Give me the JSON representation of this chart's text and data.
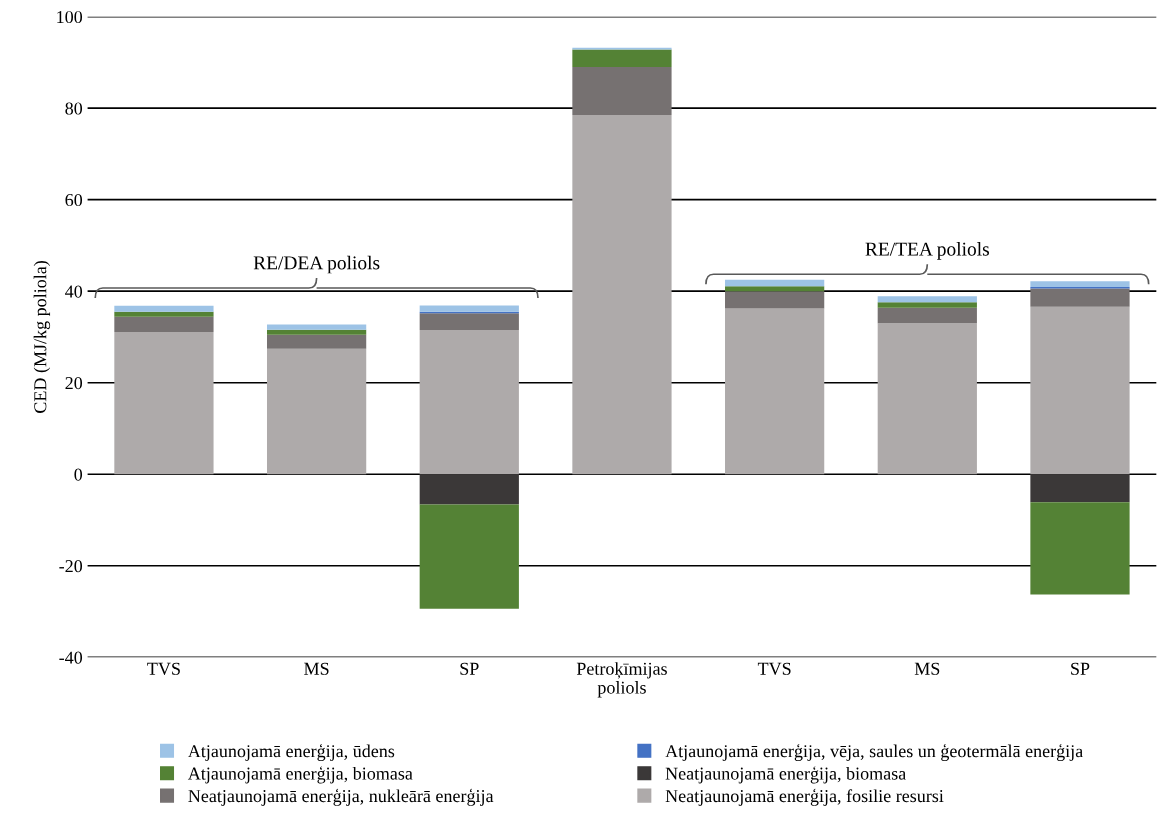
{
  "chart_data": {
    "type": "bar",
    "stacked": true,
    "ylabel": "CED (MJ/kg poliola)",
    "categories": [
      "TVS",
      "MS",
      "SP",
      "Petroķīmijas\npoliols",
      "TVS",
      "MS",
      "SP"
    ],
    "series": [
      {
        "name": "Neatjaunojamā enerģija, fosilie resursi",
        "color": "#aeaaaa",
        "values": [
          31.1,
          27.4,
          31.5,
          78.5,
          36.2,
          33.0,
          36.6
        ]
      },
      {
        "name": "Neatjaunojamā enerģija, nukleārā enerģija",
        "color": "#767171",
        "values": [
          3.3,
          3.1,
          3.7,
          10.5,
          3.8,
          3.4,
          4.0
        ]
      },
      {
        "name": "Neatjaunojamā enerģija, biomasa",
        "color": "#3b3838",
        "values": [
          0,
          0,
          -6.6,
          0,
          0,
          0,
          -6.1
        ]
      },
      {
        "name": "Atjaunojamā enerģija, biomasa",
        "color": "#548235",
        "values": [
          1.1,
          1.1,
          -22.8,
          3.8,
          1.1,
          1.2,
          -20.2
        ]
      },
      {
        "name": "Atjaunojamā enerģija, vēja, saules un ģeotermālā enerģija",
        "color": "#4472c4",
        "values": [
          0,
          0,
          0.3,
          0,
          0,
          0,
          0.3
        ]
      },
      {
        "name": "Atjaunojamā enerģija, ūdens",
        "color": "#9dc3e6",
        "values": [
          1.3,
          1.1,
          1.4,
          0.4,
          1.4,
          1.3,
          1.3
        ]
      }
    ],
    "ylim": [
      -40,
      100
    ],
    "yticks": [
      -40,
      -20,
      0,
      20,
      40,
      60,
      80,
      100
    ],
    "grid": "y",
    "legend": "bottom",
    "annotations": [
      "RE/DEA poliols",
      "RE/TEA poliols"
    ]
  }
}
